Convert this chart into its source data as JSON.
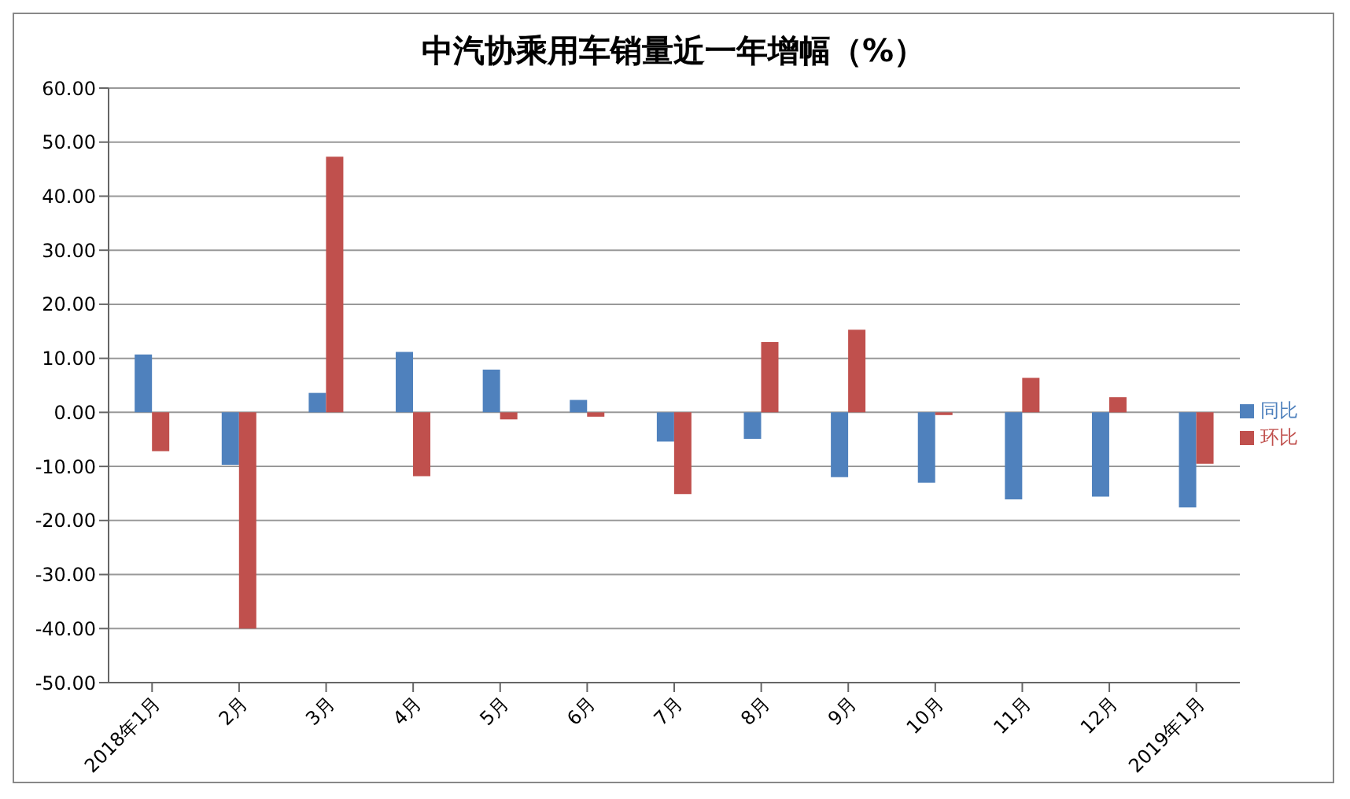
{
  "chart_data": {
    "type": "bar",
    "title": "中汽协乘用车销量近一年增幅（%）",
    "categories": [
      "2018年1月",
      "2月",
      "3月",
      "4月",
      "5月",
      "6月",
      "7月",
      "8月",
      "9月",
      "10月",
      "11月",
      "12月",
      "2019年1月"
    ],
    "series": [
      {
        "name": "同比",
        "color": "#4f81bd",
        "values": [
          10.7,
          -9.7,
          3.6,
          11.2,
          7.9,
          2.3,
          -5.4,
          -4.9,
          -12.0,
          -13.0,
          -16.1,
          -15.6,
          -17.6
        ]
      },
      {
        "name": "环比",
        "color": "#c0504d",
        "values": [
          -7.2,
          -40.0,
          47.3,
          -11.8,
          -1.3,
          -0.8,
          -15.1,
          13.0,
          15.3,
          -0.5,
          6.4,
          2.8,
          -9.5
        ]
      }
    ],
    "ylim": [
      -50,
      60
    ],
    "yticks": [
      {
        "value": -50,
        "label": "-50.00"
      },
      {
        "value": -40,
        "label": "-40.00"
      },
      {
        "value": -30,
        "label": "-30.00"
      },
      {
        "value": -20,
        "label": "-20.00"
      },
      {
        "value": -10,
        "label": "-10.00"
      },
      {
        "value": 0,
        "label": "0.00"
      },
      {
        "value": 10,
        "label": "10.00"
      },
      {
        "value": 20,
        "label": "20.00"
      },
      {
        "value": 30,
        "label": "30.00"
      },
      {
        "value": 40,
        "label": "40.00"
      },
      {
        "value": 50,
        "label": "50.00"
      },
      {
        "value": 60,
        "label": "60.00"
      }
    ],
    "grid": "y",
    "legend": "right"
  }
}
